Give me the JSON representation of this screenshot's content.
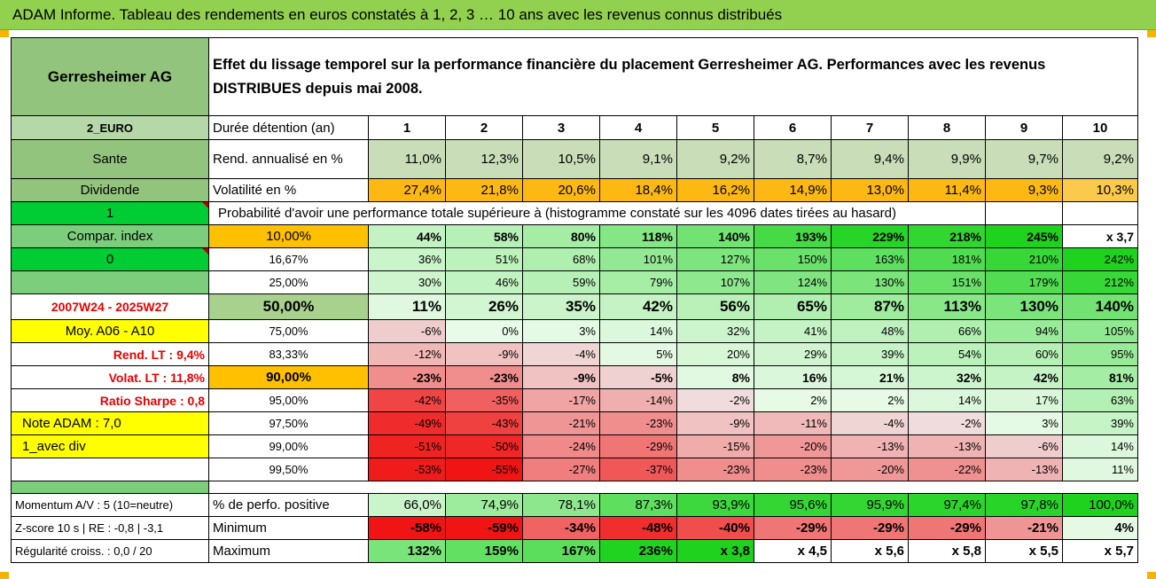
{
  "title": "ADAM Informe. Tableau des rendements en euros constatés à 1, 2, 3 … 10 ans avec les revenus connus distribués",
  "company": "Gerresheimer AG",
  "description": "Effet du lissage temporel sur la performance financière du placement Gerresheimer AG. Performances avec les revenus DISTRIBUES depuis mai 2008.",
  "side": {
    "currency": "2_EURO",
    "sector": "Sante",
    "dividend_label": "Dividende",
    "flag1": "1",
    "compar_label": "Compar. index",
    "flag0": "0",
    "period": "2007W24 - 2025W27",
    "moy": "Moy. A06 - A10",
    "rend_lt": "Rend. LT :   9,4%",
    "volat_lt": "Volat. LT :   11,8%",
    "sharpe": "Ratio Sharpe :   0,8",
    "note": "Note ADAM : 7,0",
    "avec_div": "1_avec div",
    "momentum": "Momentum A/V : 5 (10=neutre)",
    "zscore": "Z-score 10 s | RE : -0,8 | -3,1",
    "regularite": "Régularité croiss. : 0,0 / 20"
  },
  "header": {
    "label": "Durée détention (an)",
    "years": [
      "1",
      "2",
      "3",
      "4",
      "5",
      "6",
      "7",
      "8",
      "9",
      "10"
    ]
  },
  "rend": {
    "label": "Rend. annualisé en %",
    "values": [
      "11,0%",
      "12,3%",
      "10,5%",
      "9,1%",
      "9,2%",
      "8,7%",
      "9,4%",
      "9,9%",
      "9,7%",
      "9,2%"
    ]
  },
  "vol": {
    "label": "Volatilité en %",
    "values": [
      "27,4%",
      "21,8%",
      "20,6%",
      "18,4%",
      "16,2%",
      "14,9%",
      "13,0%",
      "11,4%",
      "9,3%",
      "10,3%"
    ]
  },
  "proba_label": "Probabilité d'avoir une performance totale supérieure à (histogramme constaté sur les 4096 dates tirées au hasard)",
  "perf_rows": [
    {
      "pct": "10,00%",
      "values": [
        "44%",
        "58%",
        "80%",
        "118%",
        "140%",
        "193%",
        "229%",
        "218%",
        "245%",
        "x 3,7"
      ]
    },
    {
      "pct": "16,67%",
      "values": [
        "36%",
        "51%",
        "68%",
        "101%",
        "127%",
        "150%",
        "163%",
        "181%",
        "210%",
        "242%"
      ]
    },
    {
      "pct": "25,00%",
      "values": [
        "30%",
        "46%",
        "59%",
        "79%",
        "107%",
        "124%",
        "130%",
        "151%",
        "179%",
        "212%"
      ]
    },
    {
      "pct": "50,00%",
      "values": [
        "11%",
        "26%",
        "35%",
        "42%",
        "56%",
        "65%",
        "87%",
        "113%",
        "130%",
        "140%"
      ]
    },
    {
      "pct": "75,00%",
      "values": [
        "-6%",
        "0%",
        "3%",
        "14%",
        "32%",
        "41%",
        "48%",
        "66%",
        "94%",
        "105%"
      ]
    },
    {
      "pct": "83,33%",
      "values": [
        "-12%",
        "-9%",
        "-4%",
        "5%",
        "20%",
        "29%",
        "39%",
        "54%",
        "60%",
        "95%"
      ]
    },
    {
      "pct": "90,00%",
      "values": [
        "-23%",
        "-23%",
        "-9%",
        "-5%",
        "8%",
        "16%",
        "21%",
        "32%",
        "42%",
        "81%"
      ]
    },
    {
      "pct": "95,00%",
      "values": [
        "-42%",
        "-35%",
        "-17%",
        "-14%",
        "-2%",
        "2%",
        "2%",
        "14%",
        "17%",
        "63%"
      ]
    },
    {
      "pct": "97,50%",
      "values": [
        "-49%",
        "-43%",
        "-21%",
        "-23%",
        "-9%",
        "-11%",
        "-4%",
        "-2%",
        "3%",
        "39%"
      ]
    },
    {
      "pct": "99,00%",
      "values": [
        "-51%",
        "-50%",
        "-24%",
        "-29%",
        "-15%",
        "-20%",
        "-13%",
        "-13%",
        "-6%",
        "14%"
      ]
    },
    {
      "pct": "99,50%",
      "values": [
        "-53%",
        "-55%",
        "-27%",
        "-37%",
        "-23%",
        "-23%",
        "-20%",
        "-22%",
        "-13%",
        "11%"
      ]
    }
  ],
  "stats": [
    {
      "label": "% de perfo. positive",
      "values": [
        "66,0%",
        "74,9%",
        "78,1%",
        "87,3%",
        "93,9%",
        "95,6%",
        "95,9%",
        "97,4%",
        "97,8%",
        "100,0%"
      ]
    },
    {
      "label": "Minimum",
      "values": [
        "-58%",
        "-59%",
        "-34%",
        "-48%",
        "-40%",
        "-29%",
        "-29%",
        "-29%",
        "-21%",
        "4%"
      ]
    },
    {
      "label": "Maximum",
      "values": [
        "132%",
        "159%",
        "167%",
        "236%",
        "x 3,8",
        "x 4,5",
        "x 5,6",
        "x 5,8",
        "x 5,5",
        "x 5,7"
      ]
    }
  ],
  "colors": {
    "banner": "#92d050",
    "highlight_orange": "#ffc000",
    "highlight_yellow": "#ffff00",
    "label_red": "#e60000"
  }
}
